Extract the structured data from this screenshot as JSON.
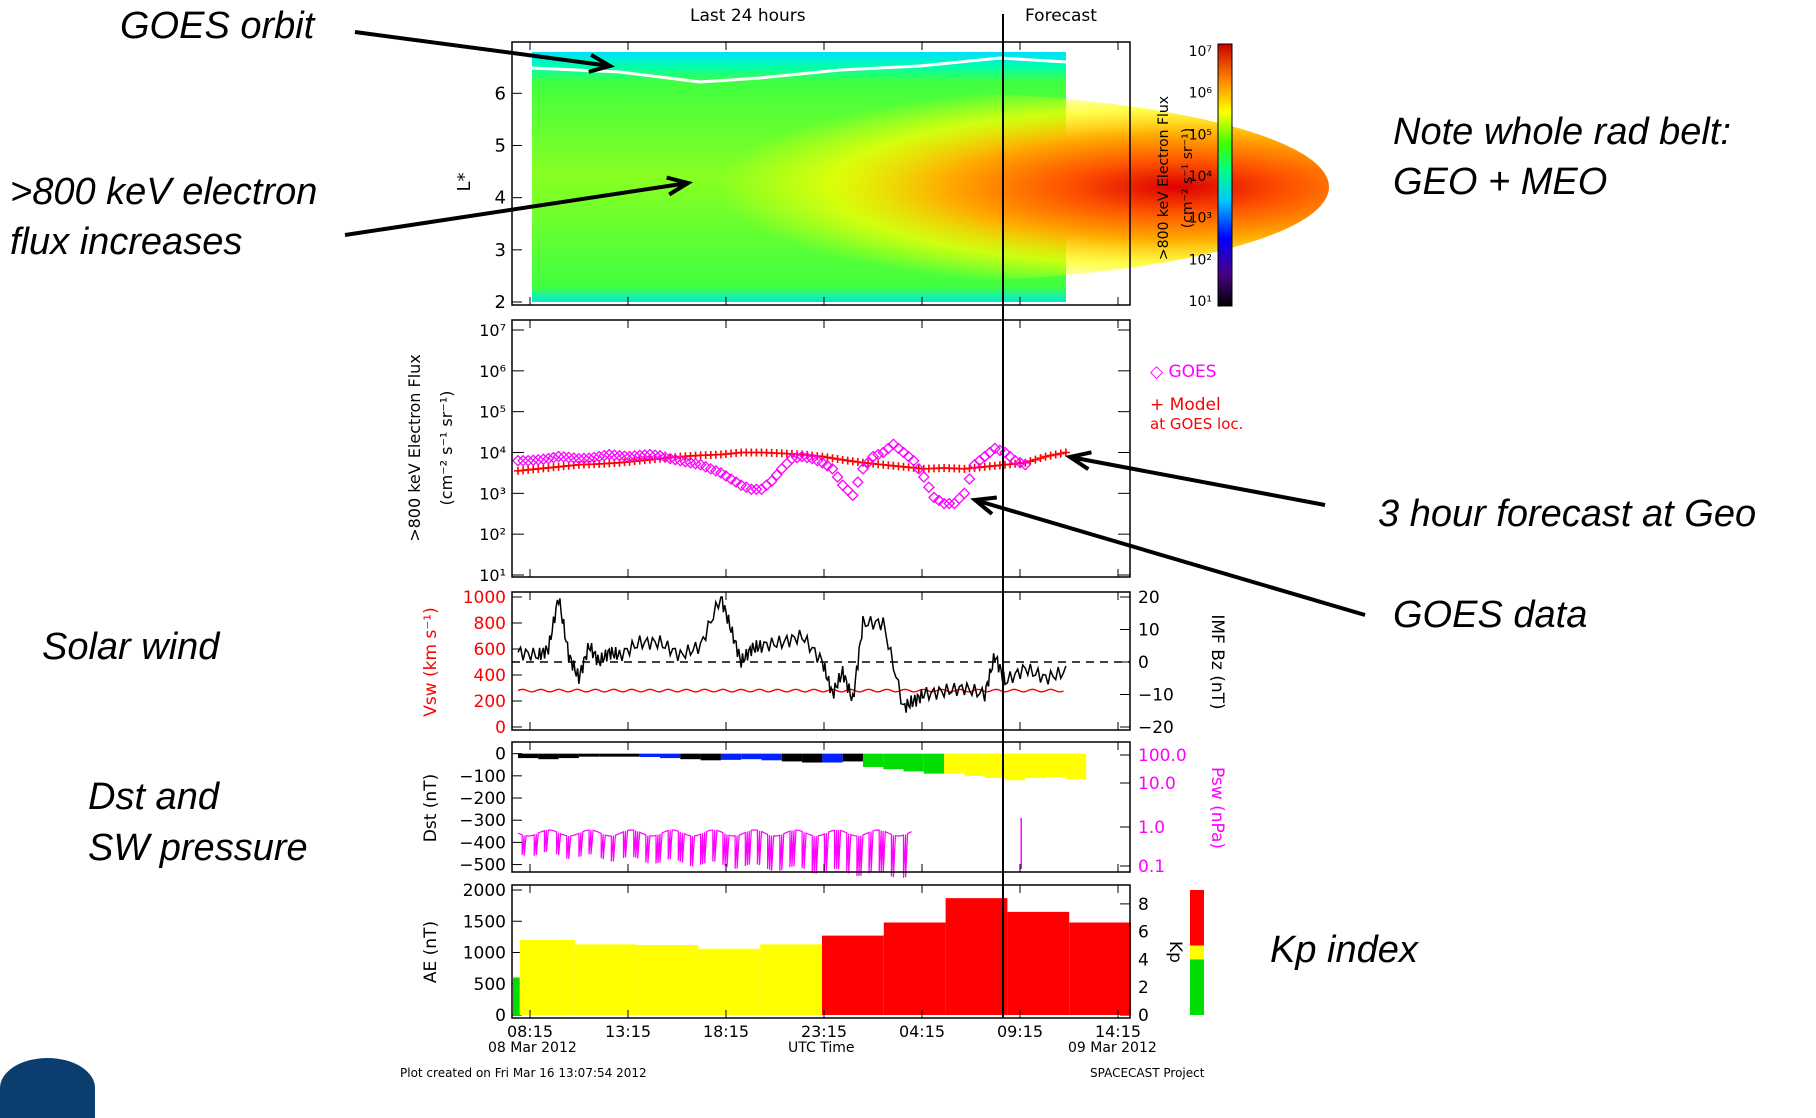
{
  "header": {
    "left": "Last 24 hours",
    "right": "Forecast"
  },
  "annotations": {
    "goes_orbit": "GOES orbit",
    "flux_line1": ">800 keV electron",
    "flux_line2": "flux increases",
    "note_line1": "Note whole rad belt:",
    "note_line2": "GEO + MEO",
    "forecast_geo": "3 hour forecast at Geo",
    "goes_data": "GOES data",
    "solar_wind": "Solar wind",
    "dst_line1": "Dst and",
    "dst_line2": "SW pressure",
    "kp_index": "Kp index"
  },
  "colors": {
    "red": "#ff0000",
    "magenta": "#ff00ff",
    "black": "#000000",
    "yellow": "#ffff00",
    "green": "#00dd00",
    "blue": "#0022ff"
  },
  "footer": {
    "left": "Plot created on Fri Mar 16 13:07:54 2012",
    "right": "SPACECAST Project",
    "center": "UTC Time",
    "date_left": "08 Mar 2012",
    "date_right": "09 Mar 2012"
  },
  "chart_data": [
    {
      "type": "heatmap",
      "ylabel": "L*",
      "yticks": [
        "2",
        "3",
        "4",
        "5",
        "6"
      ],
      "ylim": [
        2,
        6.6
      ],
      "colorbar_label_line1": ">800 keV Electron Flux",
      "colorbar_label_line2": "(cm⁻² s⁻¹ sr⁻¹)",
      "colorbar_ticks": [
        "10⁷",
        "10⁶",
        "10⁵",
        "10⁴",
        "10³",
        "10²",
        "10¹"
      ],
      "colorbar_range_log10": [
        1,
        7
      ],
      "description_values": {
        "peak_L": 3.9,
        "peak_log10_flux_last": 6.2
      }
    },
    {
      "type": "scatter",
      "ylabel_line1": ">800 keV Electron Flux",
      "ylabel_line2": "(cm⁻² s⁻¹ sr⁻¹)",
      "yticks": [
        "10⁷",
        "10⁶",
        "10⁵",
        "10⁴",
        "10³",
        "10²",
        "10¹"
      ],
      "ylim_log10": [
        1,
        7
      ],
      "legend": [
        {
          "symbol": "◇",
          "name": "GOES"
        },
        {
          "symbol": "+",
          "name": "Model"
        },
        {
          "symbol": "",
          "name": "at GOES loc."
        }
      ],
      "series": [
        {
          "name": "GOES",
          "x": [
            0.0,
            0.5,
            1,
            1.5,
            2,
            2.5,
            3,
            3.5,
            4,
            4.5,
            5,
            5.5,
            6,
            6.5,
            7,
            7.5,
            8,
            8.5,
            9,
            9.5,
            10,
            10.5,
            11,
            11.5,
            12,
            12.5,
            13,
            13.5,
            14,
            14.5,
            15,
            15.5,
            16,
            16.5,
            17,
            17.5,
            18,
            18.5,
            19,
            19.5,
            20,
            20.5,
            21,
            21.5,
            22,
            22.5,
            23,
            23.5,
            24,
            24.5,
            25
          ],
          "log10_y": [
            3.8,
            3.8,
            3.82,
            3.85,
            3.9,
            3.88,
            3.85,
            3.86,
            3.9,
            3.95,
            3.92,
            3.9,
            3.93,
            3.95,
            3.92,
            3.85,
            3.8,
            3.75,
            3.7,
            3.6,
            3.5,
            3.35,
            3.2,
            3.1,
            3.1,
            3.3,
            3.6,
            3.85,
            3.9,
            3.85,
            3.75,
            3.6,
            3.2,
            2.95,
            3.6,
            3.9,
            4.0,
            4.2,
            4.0,
            3.8,
            3.4,
            2.9,
            2.75,
            2.75,
            3.0,
            3.7,
            3.9,
            4.1,
            4.0,
            3.8,
            3.7
          ]
        },
        {
          "name": "Model",
          "x": [
            0,
            1,
            2,
            3,
            4,
            5,
            6,
            7,
            8,
            9,
            10,
            11,
            12,
            13,
            14,
            15,
            16,
            17,
            18,
            19,
            20,
            21,
            22,
            23,
            24,
            25,
            26,
            27
          ],
          "log10_y": [
            3.55,
            3.6,
            3.65,
            3.7,
            3.72,
            3.75,
            3.8,
            3.85,
            3.9,
            3.93,
            3.95,
            4.0,
            4.0,
            3.98,
            3.95,
            3.9,
            3.82,
            3.75,
            3.7,
            3.65,
            3.6,
            3.62,
            3.6,
            3.65,
            3.7,
            3.75,
            3.9,
            4.0
          ]
        }
      ]
    },
    {
      "type": "line",
      "ylabel_left": "Vsw (km s⁻¹)",
      "ylabel_right": "IMF Bz (nT)",
      "yticks_left": [
        "1000",
        "800",
        "600",
        "400",
        "200",
        "0"
      ],
      "yticks_right": [
        "20",
        "10",
        "0",
        "−10",
        "−20"
      ],
      "ylim_left": [
        0,
        1000
      ],
      "ylim_right": [
        -20,
        20
      ],
      "series": [
        {
          "name": "Vsw",
          "x_hours": [
            0,
            27
          ],
          "y": [
            280,
            280
          ]
        },
        {
          "name": "IMF Bz",
          "x_hours": [
            0,
            1,
            1.5,
            2,
            2.5,
            3,
            3.5,
            4,
            4.5,
            5,
            6,
            7,
            8,
            9,
            10,
            10.5,
            11,
            11.5,
            12,
            13,
            14,
            15,
            15.5,
            16,
            16.5,
            17,
            18,
            19,
            19.5,
            20,
            21,
            22,
            23,
            23.5,
            24,
            25,
            26,
            27
          ],
          "y": [
            3,
            2,
            4,
            20,
            2,
            -5,
            5,
            0,
            3,
            2,
            6,
            6,
            2,
            5,
            20,
            10,
            0,
            4,
            5,
            6,
            8,
            0,
            -10,
            -3,
            -12,
            12,
            12,
            -14,
            -12,
            -10,
            -9,
            -8,
            -10,
            2,
            -6,
            -2,
            -5,
            -3
          ]
        }
      ]
    },
    {
      "type": "bar",
      "ylabel_left": "Dst (nT)",
      "ylabel_right": "Psw (nPa)",
      "yticks_left": [
        "0",
        "−100",
        "−200",
        "−300",
        "−400",
        "−500"
      ],
      "yticks_right": [
        "100.0",
        "10.0",
        "1.0",
        "0.1"
      ],
      "ylim_left": [
        -520,
        30
      ],
      "categories_hours": [
        0,
        1,
        2,
        3,
        4,
        5,
        6,
        7,
        8,
        9,
        10,
        11,
        12,
        13,
        14,
        15,
        16,
        17,
        18,
        19,
        20,
        21,
        22,
        23,
        24,
        25,
        26,
        27
      ],
      "values": [
        -20,
        -25,
        -20,
        -12,
        -10,
        -12,
        -15,
        -20,
        -25,
        -30,
        -28,
        -25,
        -30,
        -35,
        -40,
        -40,
        -35,
        -60,
        -70,
        -80,
        -90,
        -90,
        -100,
        -110,
        -120,
        -110,
        -105,
        -115
      ]
    },
    {
      "type": "bar",
      "ylabel_left": "AE (nT)",
      "ylabel_right": "Kp",
      "yticks_left": [
        "2000",
        "1500",
        "1000",
        "500",
        "0"
      ],
      "yticks_right": [
        "8",
        "6",
        "4",
        "2",
        "0"
      ],
      "ylim_left": [
        0,
        2000
      ],
      "bars": [
        {
          "start": 0,
          "end": 0.33,
          "value": 600,
          "level": "green"
        },
        {
          "start": 0.33,
          "end": 3,
          "value": 1200,
          "level": "yellow"
        },
        {
          "start": 3,
          "end": 6,
          "value": 1130,
          "level": "yellow"
        },
        {
          "start": 6,
          "end": 9,
          "value": 1120,
          "level": "yellow"
        },
        {
          "start": 9,
          "end": 12,
          "value": 1060,
          "level": "yellow"
        },
        {
          "start": 12,
          "end": 15,
          "value": 1130,
          "level": "yellow"
        },
        {
          "start": 15,
          "end": 18,
          "value": 1270,
          "level": "red"
        },
        {
          "start": 18,
          "end": 21,
          "value": 1480,
          "level": "red"
        },
        {
          "start": 21,
          "end": 24,
          "value": 1870,
          "level": "red"
        },
        {
          "start": 24,
          "end": 27,
          "value": 1650,
          "level": "red"
        },
        {
          "start": 27,
          "end": 30,
          "value": 1480,
          "level": "red"
        }
      ],
      "kp_legend": [
        {
          "range": [
            5,
            9
          ],
          "level": "red"
        },
        {
          "range": [
            4,
            5
          ],
          "level": "yellow"
        },
        {
          "range": [
            0,
            4
          ],
          "level": "green"
        }
      ]
    }
  ],
  "x_axis": {
    "ticks": [
      "08:15",
      "13:15",
      "18:15",
      "23:15",
      "04:15",
      "09:15",
      "14:15"
    ],
    "now_hours": 24
  }
}
